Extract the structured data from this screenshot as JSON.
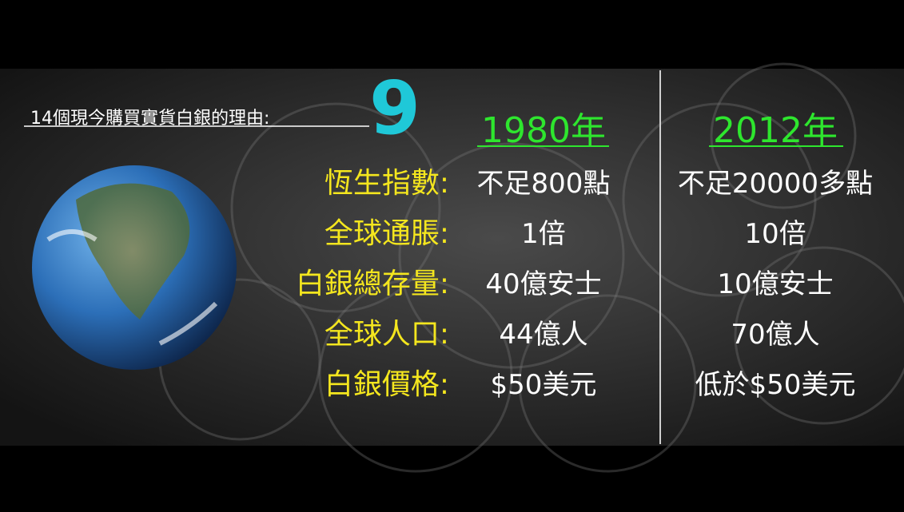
{
  "header": {
    "title": "14個現今購買實貨白銀的理由:",
    "number": "9"
  },
  "table": {
    "columns": [
      "1980年",
      "2012年"
    ],
    "rows": [
      [
        "恆生指數:",
        "不足800點",
        "不足20000多點"
      ],
      [
        "全球通脹:",
        "1倍",
        "10倍"
      ],
      [
        "白銀總存量:",
        "40億安士",
        "10億安士"
      ],
      [
        "全球人口:",
        "44億人",
        "70億人"
      ],
      [
        "白銀價格:",
        "$50美元",
        "低於$50美元"
      ]
    ]
  }
}
